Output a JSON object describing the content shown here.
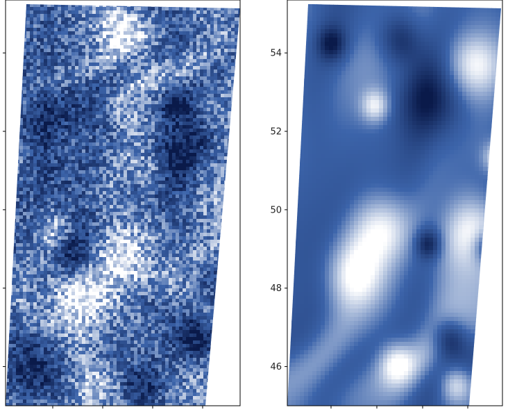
{
  "chart_data": [
    {
      "type": "heatmap",
      "panel": "left",
      "variant": "noisy",
      "ylim": [
        45.0,
        55.35
      ],
      "yticks": [
        46,
        48,
        50,
        52,
        54
      ],
      "ytick_labels": [
        "",
        "",
        "",
        "",
        ""
      ],
      "xtick_count": 4,
      "colors": {
        "dark": "#0a1a4a",
        "mid": "#3c64aa",
        "light": "#ffffff"
      }
    },
    {
      "type": "heatmap",
      "panel": "right",
      "variant": "smooth",
      "ylim": [
        45.0,
        55.35
      ],
      "yticks": [
        46,
        48,
        50,
        52,
        54
      ],
      "ytick_labels": [
        "46",
        "48",
        "50",
        "52",
        "54"
      ],
      "xtick_count": 5,
      "colors": {
        "dark": "#0a1a4a",
        "mid": "#3c64aa",
        "light": "#ffffff"
      }
    }
  ]
}
